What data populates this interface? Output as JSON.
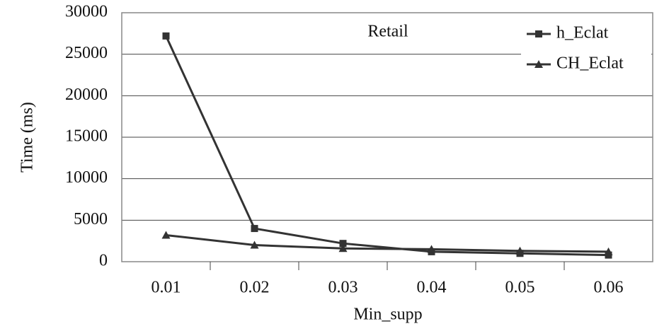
{
  "chart_data": {
    "type": "line",
    "annotation": "Retail",
    "x_label": "Min_supp",
    "y_label": "Time (ms)",
    "categories": [
      "0.01",
      "0.02",
      "0.03",
      "0.04",
      "0.05",
      "0.06"
    ],
    "series": [
      {
        "name": "h_Eclat",
        "color": "#333333",
        "marker": "square",
        "values": [
          27200,
          4000,
          2200,
          1200,
          1000,
          800
        ]
      },
      {
        "name": "CH_Eclat",
        "color": "#333333",
        "marker": "triangle",
        "values": [
          3200,
          2000,
          1600,
          1500,
          1300,
          1200
        ]
      }
    ],
    "ylim": [
      0,
      30000
    ],
    "yticks": [
      0,
      5000,
      10000,
      15000,
      20000,
      25000,
      30000
    ],
    "grid": true,
    "legend": "upper right"
  }
}
